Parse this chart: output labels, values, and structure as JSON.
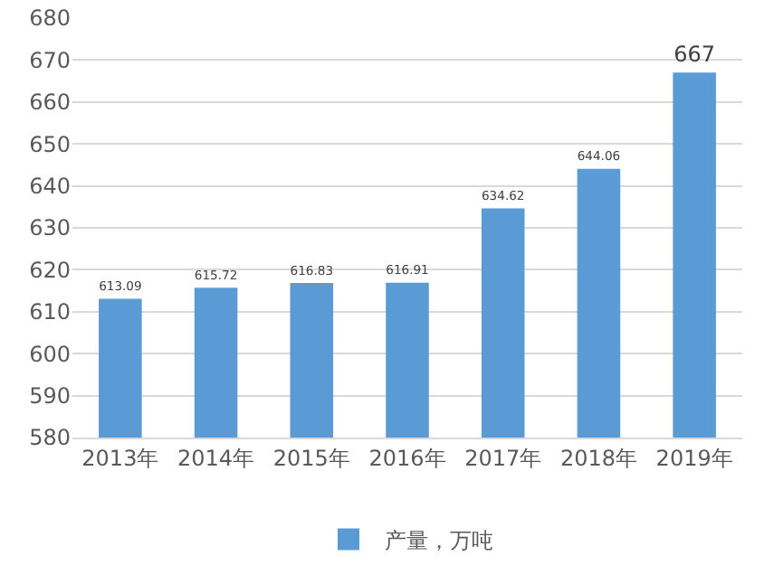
{
  "chart_data": {
    "type": "bar",
    "categories": [
      "2013年",
      "2014年",
      "2015年",
      "2016年",
      "2017年",
      "2018年",
      "2019年"
    ],
    "series": [
      {
        "name": "产量，万吨",
        "color": "#5b9bd5",
        "values": [
          613.09,
          615.72,
          616.83,
          616.91,
          634.62,
          644.06,
          667
        ]
      }
    ],
    "ylim": [
      580,
      680
    ],
    "yticks": [
      580,
      590,
      600,
      610,
      620,
      630,
      640,
      650,
      660,
      670,
      680
    ],
    "grid": "y",
    "legend": "bottom",
    "data_labels": true
  }
}
